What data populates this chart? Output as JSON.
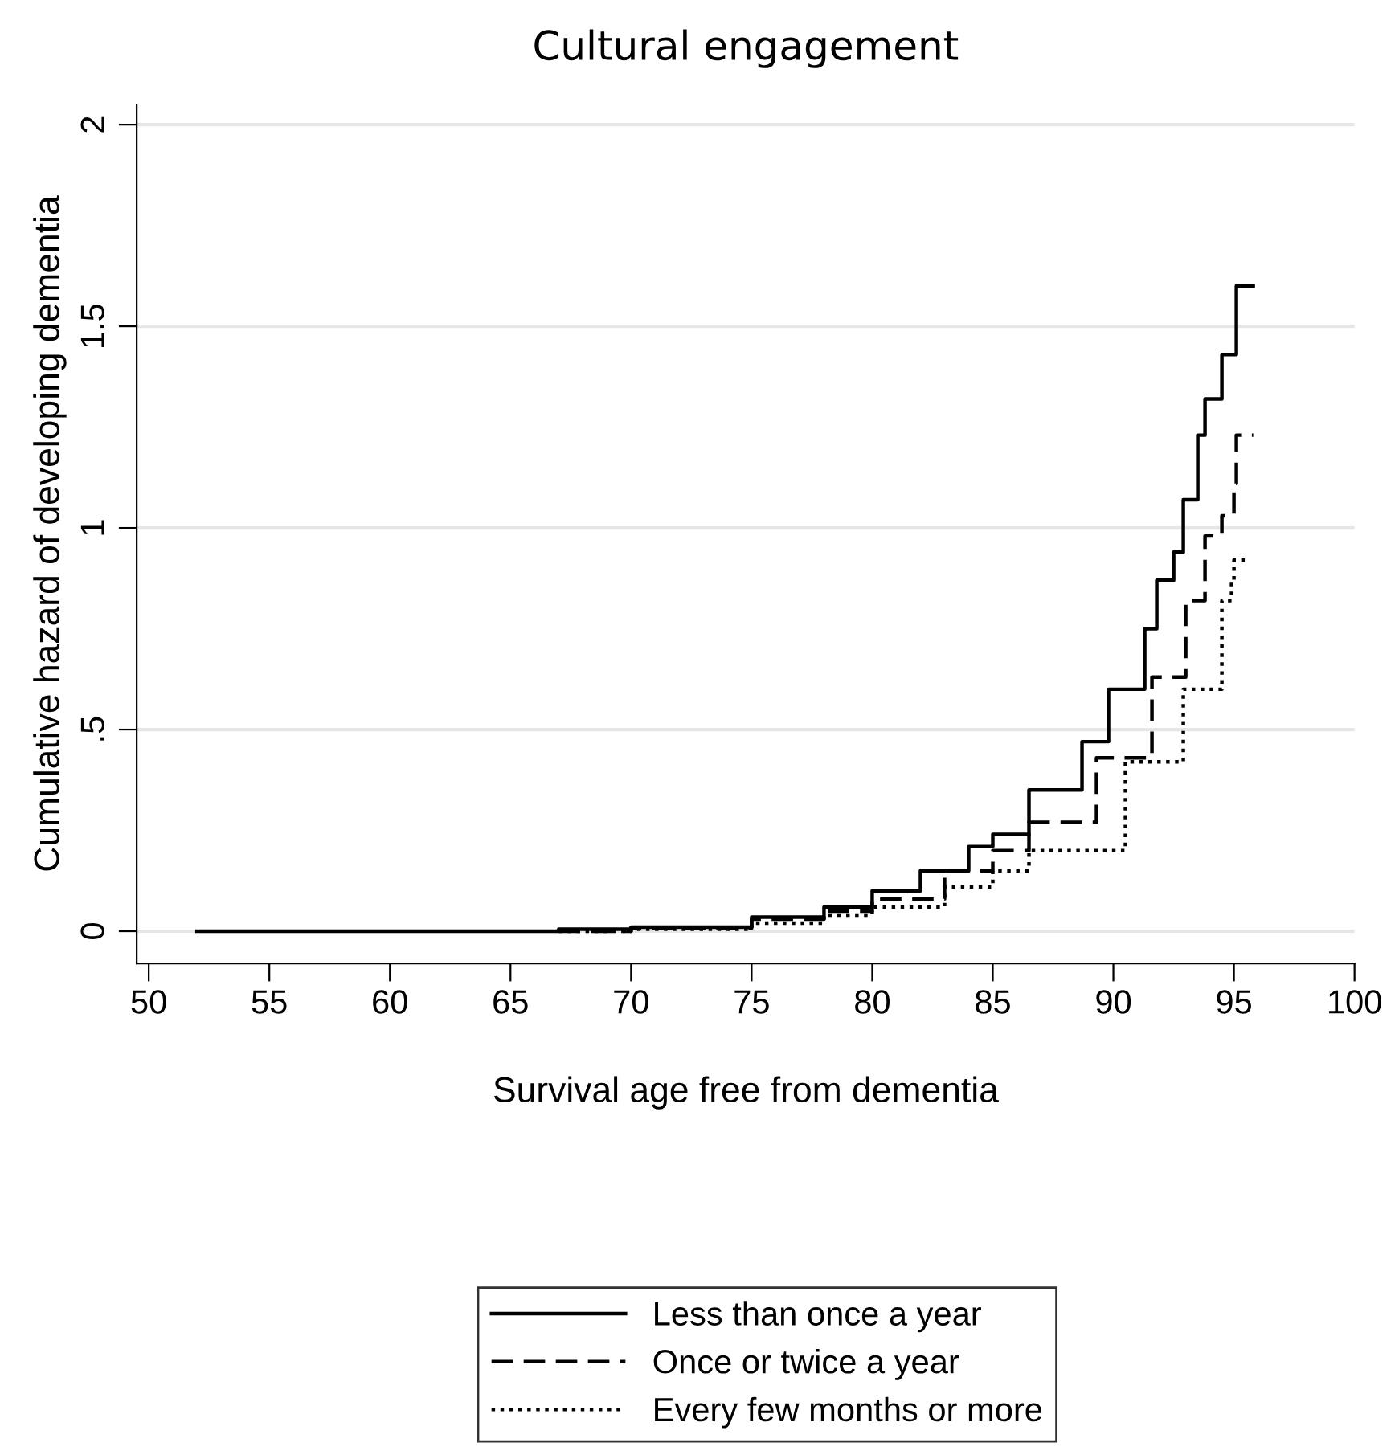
{
  "chart_data": {
    "type": "step",
    "title": "Cultural engagement",
    "xlabel": "Survival age free from dementia",
    "ylabel": "Cumulative hazard of developing dementia",
    "xlim": [
      49.5,
      100
    ],
    "xticks": [
      50,
      55,
      60,
      65,
      70,
      75,
      80,
      85,
      90,
      95,
      100
    ],
    "ylim": [
      -0.08,
      2.05
    ],
    "yticks": [
      {
        "value": 0,
        "label": "0"
      },
      {
        "value": 0.5,
        "label": ".5"
      },
      {
        "value": 1,
        "label": "1"
      },
      {
        "value": 1.5,
        "label": "1.5"
      },
      {
        "value": 2,
        "label": "2"
      }
    ],
    "grid": "y",
    "legend": "bottom",
    "marker": "none",
    "series": [
      {
        "name": "Less than once a year",
        "color": "#000000",
        "line_style": "solid",
        "x": [
          52,
          67,
          70,
          75,
          78,
          80,
          82,
          84,
          85,
          86.5,
          88.7,
          89.8,
          91.3,
          91.8,
          92.5,
          92.9,
          93.5,
          93.8,
          94.5,
          95.1,
          95.8
        ],
        "values": [
          0,
          0.005,
          0.01,
          0.035,
          0.06,
          0.1,
          0.15,
          0.21,
          0.24,
          0.35,
          0.47,
          0.6,
          0.75,
          0.87,
          0.94,
          1.07,
          1.23,
          1.32,
          1.43,
          1.6,
          1.6
        ]
      },
      {
        "name": "Once or twice a year",
        "color": "#000000",
        "line_style": "dashed",
        "x": [
          67,
          70,
          75,
          78,
          80,
          83,
          85,
          86.5,
          89.3,
          91.6,
          93,
          93.8,
          94.5,
          95,
          95.1,
          95.8
        ],
        "values": [
          0,
          0.008,
          0.03,
          0.05,
          0.08,
          0.15,
          0.2,
          0.27,
          0.43,
          0.63,
          0.82,
          0.98,
          1.03,
          1.11,
          1.23,
          1.23
        ]
      },
      {
        "name": "Every few months or more",
        "color": "#000000",
        "line_style": "dotted",
        "x": [
          67,
          70,
          75,
          78,
          80,
          83,
          85,
          86.5,
          90.5,
          92.9,
          94.5,
          94.9,
          95,
          95.6
        ],
        "values": [
          0,
          0.005,
          0.02,
          0.04,
          0.06,
          0.11,
          0.15,
          0.2,
          0.42,
          0.6,
          0.82,
          0.87,
          0.92,
          0.92
        ]
      }
    ]
  }
}
